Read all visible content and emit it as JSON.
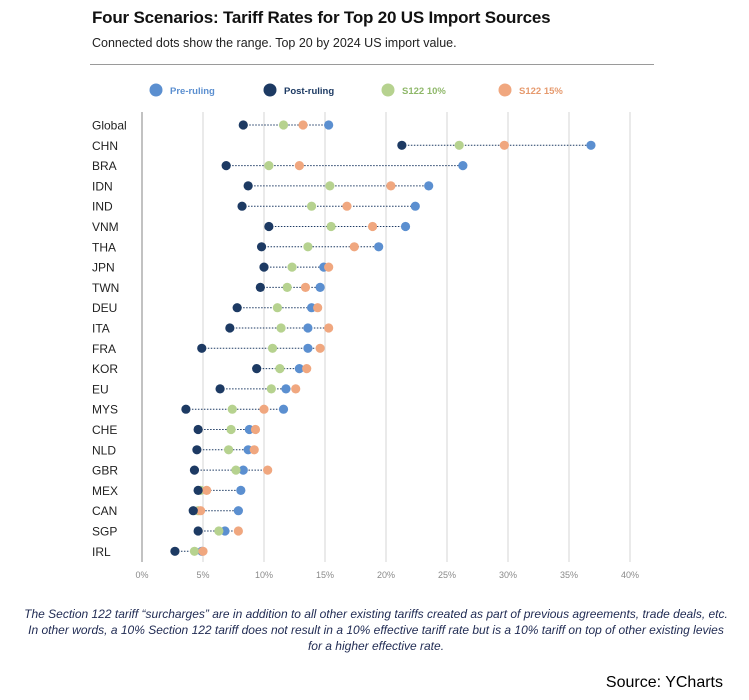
{
  "title": "Four Scenarios: Tariff Rates for Top 20 US Import Sources",
  "subtitle": "Connected dots show the range. Top 20 by 2024 US import value.",
  "caption": "The Section 122 tariff “surcharges” are in addition to all other existing tariffs created as part of previous agreements, trade deals, etc. In other words, a 10% Section 122 tariff does not result in a 10% effective tariff rate but is a 10% tariff on top of other existing levies for a higher effective rate.",
  "source": "Source: YCharts",
  "chart_data": {
    "type": "scatter",
    "categories": [
      "Global",
      "CHN",
      "BRA",
      "IDN",
      "IND",
      "VNM",
      "THA",
      "JPN",
      "TWN",
      "DEU",
      "ITA",
      "FRA",
      "KOR",
      "EU",
      "MYS",
      "CHE",
      "NLD",
      "GBR",
      "MEX",
      "CAN",
      "SGP",
      "IRL"
    ],
    "series": [
      {
        "name": "Pre-ruling",
        "color": "#5b8fd0",
        "values": [
          15.3,
          36.8,
          26.3,
          23.5,
          22.4,
          21.6,
          19.4,
          14.9,
          14.6,
          13.9,
          13.6,
          13.6,
          12.9,
          11.8,
          11.6,
          8.8,
          8.7,
          8.3,
          8.1,
          7.9,
          6.8,
          4.9
        ]
      },
      {
        "name": "Post-ruling",
        "color": "#1d3a63",
        "values": [
          8.3,
          21.3,
          6.9,
          8.7,
          8.2,
          10.4,
          9.8,
          10.0,
          9.7,
          7.8,
          7.2,
          4.9,
          9.4,
          6.4,
          3.6,
          4.6,
          4.5,
          4.3,
          4.6,
          4.2,
          4.6,
          2.7
        ]
      },
      {
        "name": "S122 10%",
        "color": "#b6d28f",
        "values": [
          11.6,
          26.0,
          10.4,
          15.4,
          13.9,
          15.5,
          13.6,
          12.3,
          11.9,
          11.1,
          11.4,
          10.7,
          11.3,
          10.6,
          7.4,
          7.3,
          7.1,
          7.7,
          4.8,
          4.6,
          6.3,
          4.3
        ]
      },
      {
        "name": "S122 15%",
        "color": "#f0a77f",
        "values": [
          13.2,
          29.7,
          12.9,
          20.4,
          16.8,
          18.9,
          17.4,
          15.3,
          13.4,
          14.4,
          15.3,
          14.6,
          13.5,
          12.6,
          10.0,
          9.3,
          9.2,
          10.3,
          5.3,
          4.8,
          7.9,
          5.0
        ]
      }
    ],
    "xlim": [
      0,
      40
    ],
    "xticks": [
      "0%",
      "5%",
      "10%",
      "15%",
      "20%",
      "25%",
      "30%",
      "35%",
      "40%"
    ],
    "grid": "vertical",
    "legend": "top"
  }
}
